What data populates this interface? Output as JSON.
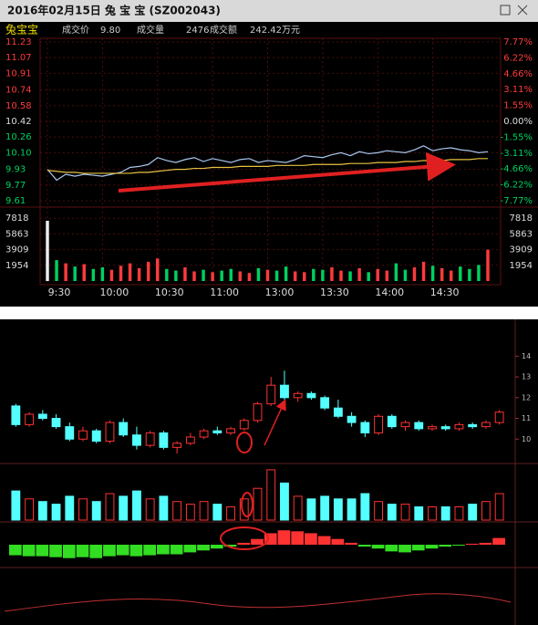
{
  "window": {
    "title": "2016年02月15日 兔 宝 宝 (SZ002043)"
  },
  "quote": {
    "name": "兔宝宝",
    "price_label": "成交价",
    "price": "9.80",
    "volume_label": "成交量",
    "volume": "2476",
    "amount_label": "成交额",
    "amount": "242.42万元"
  },
  "chart_data": [
    {
      "type": "line",
      "categories": [
        "9:30",
        null,
        null,
        null,
        null,
        null,
        "10:00",
        null,
        null,
        null,
        null,
        null,
        "10:30",
        null,
        null,
        null,
        null,
        null,
        "11:00",
        null,
        null,
        null,
        null,
        null,
        "13:00",
        null,
        null,
        null,
        null,
        null,
        "13:30",
        null,
        null,
        null,
        null,
        null,
        "14:00",
        null,
        null,
        null,
        null,
        null,
        "14:30",
        null,
        null,
        null,
        null,
        null,
        null
      ],
      "series": [
        {
          "color": "#a9c6ee",
          "values": [
            9.93,
            9.82,
            9.88,
            9.86,
            9.88,
            9.87,
            9.86,
            9.88,
            9.9,
            9.95,
            9.96,
            9.98,
            10.05,
            10.02,
            10.0,
            10.03,
            10.05,
            10.01,
            10.04,
            10.02,
            10.0,
            10.03,
            10.04,
            10.0,
            10.02,
            10.01,
            10.0,
            10.03,
            10.07,
            10.06,
            10.05,
            10.08,
            10.1,
            10.07,
            10.11,
            10.09,
            10.1,
            10.12,
            10.11,
            10.1,
            10.13,
            10.17,
            10.12,
            10.14,
            10.15,
            10.13,
            10.12,
            10.1,
            10.11
          ]
        },
        {
          "color": "#e8c341",
          "values": [
            9.92,
            9.91,
            9.9,
            9.9,
            9.89,
            9.89,
            9.89,
            9.89,
            9.89,
            9.89,
            9.9,
            9.9,
            9.91,
            9.92,
            9.93,
            9.93,
            9.94,
            9.94,
            9.95,
            9.95,
            9.95,
            9.96,
            9.96,
            9.96,
            9.96,
            9.97,
            9.97,
            9.97,
            9.97,
            9.98,
            9.98,
            9.98,
            9.98,
            9.99,
            9.99,
            9.99,
            10.0,
            10.0,
            10.0,
            10.01,
            10.01,
            10.02,
            10.02,
            10.02,
            10.03,
            10.03,
            10.03,
            10.04,
            10.04
          ]
        }
      ],
      "ylim": [
        9.61,
        11.23
      ],
      "yticks": [
        11.23,
        11.07,
        10.91,
        10.74,
        10.58,
        10.42,
        10.26,
        {
          "value": 10.1,
          "label": "10.10"
        },
        9.93,
        9.77,
        9.61
      ],
      "y2lim": [
        -7.77,
        7.77
      ],
      "y2ticks": [
        {
          "value": 7.77,
          "label": "7.77%"
        },
        {
          "value": 6.22,
          "label": "6.22%"
        },
        {
          "value": 4.66,
          "label": "4.66%"
        },
        {
          "value": 3.11,
          "label": "3.11%"
        },
        {
          "value": 1.55,
          "label": "1.55%"
        },
        {
          "value": 0,
          "label": "0.00%"
        },
        {
          "value": -1.55,
          "label": "-1.55%"
        },
        {
          "value": -3.11,
          "label": "-3.11%"
        },
        {
          "value": -4.66,
          "label": "-4.66%"
        },
        {
          "value": -6.22,
          "label": "-6.22%"
        },
        {
          "value": -7.77,
          "label": "-7.77%"
        }
      ],
      "volume": {
        "values": [
          7500,
          2600,
          2200,
          1800,
          2100,
          1500,
          1700,
          1400,
          1900,
          2200,
          1600,
          2400,
          2800,
          1500,
          1300,
          1700,
          1200,
          1400,
          1100,
          1300,
          1500,
          1200,
          1000,
          1600,
          1400,
          1300,
          1800,
          1200,
          1100,
          1500,
          1400,
          1700,
          1300,
          1200,
          1600,
          1100,
          1500,
          1300,
          2200,
          1400,
          1700,
          2400,
          1900,
          1600,
          1300,
          1800,
          1500,
          2000,
          3900
        ],
        "ylim": [
          0,
          9772
        ],
        "yticks": [
          7818,
          5863,
          3909,
          1954
        ]
      },
      "up_color": "#ff3b3b",
      "down_color": "#00d060"
    },
    {
      "type": "candlestick",
      "open": [
        11.6,
        10.7,
        11.2,
        11.0,
        10.6,
        10.0,
        10.4,
        9.9,
        10.8,
        10.2,
        9.7,
        10.3,
        9.6,
        9.8,
        10.1,
        10.4,
        10.3,
        10.5,
        10.9,
        11.7,
        12.6,
        12.0,
        12.2,
        12.0,
        11.5,
        11.1,
        10.8,
        10.3,
        11.1,
        10.6,
        10.8,
        10.5,
        10.6,
        10.5,
        10.7,
        10.6,
        10.8
      ],
      "high": [
        11.7,
        11.3,
        11.4,
        11.2,
        10.8,
        10.6,
        10.5,
        10.9,
        11.0,
        10.6,
        10.4,
        10.4,
        9.9,
        10.3,
        10.5,
        10.6,
        10.6,
        11.0,
        11.8,
        13.0,
        13.3,
        12.3,
        12.3,
        12.1,
        11.9,
        11.3,
        10.9,
        11.2,
        11.2,
        10.9,
        10.9,
        10.7,
        10.7,
        10.8,
        10.8,
        10.9,
        11.4
      ],
      "low": [
        10.6,
        10.6,
        10.9,
        10.5,
        9.9,
        9.9,
        9.8,
        9.8,
        10.1,
        9.5,
        9.6,
        9.5,
        9.3,
        9.7,
        10.0,
        10.2,
        10.2,
        10.4,
        10.8,
        11.6,
        11.9,
        11.8,
        11.9,
        11.4,
        11.0,
        10.6,
        10.1,
        10.2,
        10.5,
        10.4,
        10.4,
        10.4,
        10.4,
        10.4,
        10.5,
        10.5,
        10.7
      ],
      "close": [
        10.7,
        11.2,
        11.0,
        10.6,
        10.0,
        10.4,
        9.9,
        10.8,
        10.2,
        9.7,
        10.3,
        9.6,
        9.8,
        10.1,
        10.4,
        10.3,
        10.5,
        10.9,
        11.7,
        12.6,
        12.0,
        12.2,
        12.0,
        11.5,
        11.1,
        10.8,
        10.3,
        11.1,
        10.6,
        10.8,
        10.5,
        10.6,
        10.5,
        10.7,
        10.6,
        10.8,
        11.3
      ],
      "ylim": [
        9,
        15.6
      ],
      "yticks": [
        14,
        13,
        12,
        11,
        10
      ],
      "volume": {
        "values": [
          55,
          40,
          35,
          30,
          45,
          40,
          35,
          50,
          45,
          55,
          40,
          45,
          35,
          30,
          35,
          30,
          25,
          40,
          60,
          95,
          70,
          45,
          40,
          45,
          40,
          40,
          50,
          35,
          30,
          30,
          25,
          25,
          25,
          25,
          30,
          35,
          50
        ],
        "ylim": [
          0,
          100
        ]
      },
      "macd": {
        "values": [
          -0.55,
          -0.6,
          -0.6,
          -0.65,
          -0.7,
          -0.65,
          -0.7,
          -0.6,
          -0.55,
          -0.6,
          -0.55,
          -0.5,
          -0.5,
          -0.4,
          -0.3,
          -0.2,
          -0.1,
          0.1,
          0.3,
          0.6,
          0.75,
          0.7,
          0.6,
          0.45,
          0.3,
          0.1,
          -0.1,
          -0.2,
          -0.35,
          -0.4,
          -0.3,
          -0.2,
          -0.1,
          -0.05,
          0.05,
          0.1,
          0.35
        ],
        "ylim": [
          -1,
          1
        ]
      },
      "up_color": "#ff3232",
      "down_color": "#54ffff"
    }
  ]
}
